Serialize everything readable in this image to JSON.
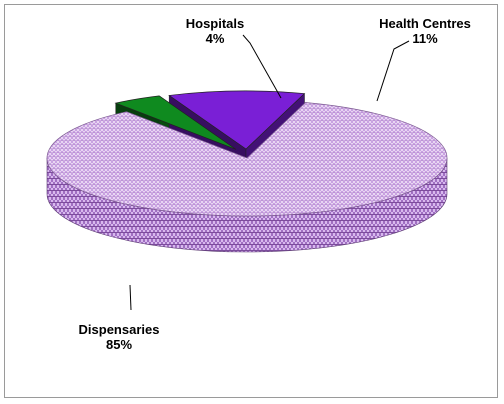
{
  "chart_data": {
    "type": "pie",
    "title": "",
    "style": "3d-exploded",
    "slices": [
      {
        "name": "Dispensaries",
        "percent_label": "85%",
        "value": 85,
        "color": "#c8a0e0",
        "pattern": "checker"
      },
      {
        "name": "Hospitals",
        "percent_label": "4%",
        "value": 4,
        "color": "#0f8a1f",
        "pattern": "solid"
      },
      {
        "name": "Health Centres",
        "percent_label": "11%",
        "value": 11,
        "color": "#7a1fd6",
        "pattern": "solid"
      }
    ]
  }
}
